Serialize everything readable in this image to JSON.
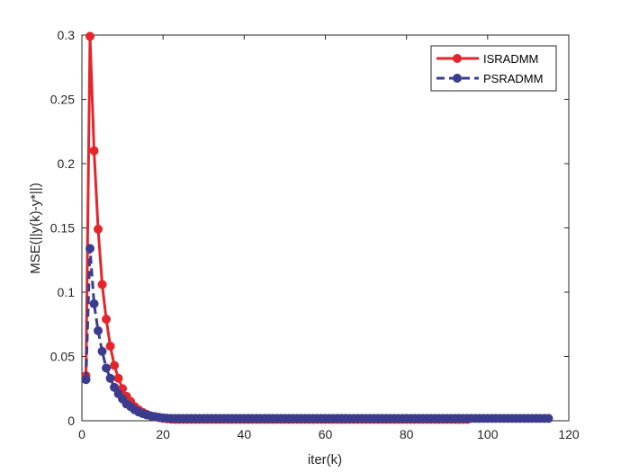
{
  "chart_data": {
    "type": "line",
    "title": "",
    "xlabel": "iter(k)",
    "ylabel": "MSE(||y(k)-y*||)",
    "xlim": [
      0,
      120
    ],
    "ylim": [
      0,
      0.3
    ],
    "x_ticks": [
      0,
      20,
      40,
      60,
      80,
      100,
      120
    ],
    "y_ticks": [
      0,
      0.05,
      0.1,
      0.15,
      0.2,
      0.25,
      0.3
    ],
    "x_tick_labels": [
      "0",
      "20",
      "40",
      "60",
      "80",
      "100",
      "120"
    ],
    "y_tick_labels": [
      "0",
      "0.05",
      "0.1",
      "0.15",
      "0.2",
      "0.25",
      "0.3"
    ],
    "grid": false,
    "legend_position": "top-right",
    "series": [
      {
        "name": "ISRADMM",
        "color": "#e3262b",
        "line_style": "solid",
        "marker": "circle",
        "x_start": 1,
        "x_end": 95,
        "values_head": [
          0.035,
          0.299,
          0.21,
          0.149,
          0.106,
          0.079,
          0.058,
          0.043,
          0.033,
          0.025,
          0.019,
          0.015,
          0.011,
          0.0085,
          0.0065,
          0.005,
          0.0038,
          0.003,
          0.0024,
          0.0019,
          0.0015,
          0.0012,
          0.001
        ],
        "tail_value": 0.001
      },
      {
        "name": "PSRADMM",
        "color": "#3c3c8f",
        "line_style": "dashed",
        "marker": "circle",
        "x_start": 1,
        "x_end": 115,
        "values_head": [
          0.032,
          0.134,
          0.091,
          0.07,
          0.054,
          0.041,
          0.033,
          0.026,
          0.021,
          0.017,
          0.013,
          0.011,
          0.0085,
          0.0068,
          0.0055,
          0.0045,
          0.0038,
          0.0032,
          0.0027,
          0.0023,
          0.002
        ],
        "tail_value": 0.0018
      }
    ]
  }
}
